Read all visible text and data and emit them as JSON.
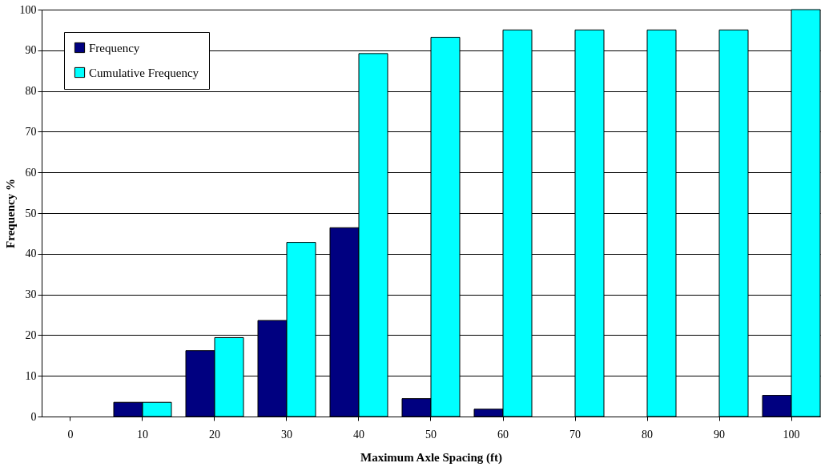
{
  "chart_data": {
    "type": "bar",
    "xlabel": "Maximum Axle Spacing (ft)",
    "ylabel": "Frequency %",
    "categories": [
      "0",
      "10",
      "20",
      "30",
      "40",
      "50",
      "60",
      "70",
      "80",
      "90",
      "100"
    ],
    "series": [
      {
        "name": "Frequency",
        "color": "#000080",
        "values": [
          0,
          3.5,
          16.2,
          23.6,
          46.4,
          4.4,
          1.8,
          0,
          0,
          0,
          5.2
        ]
      },
      {
        "name": "Cumulative Frequency",
        "color": "#00ffff",
        "values": [
          0,
          3.5,
          19.4,
          42.8,
          89.2,
          93.2,
          95,
          95,
          95,
          95,
          100
        ]
      }
    ],
    "ylim": [
      0,
      100
    ],
    "yticks": [
      0,
      10,
      20,
      30,
      40,
      50,
      60,
      70,
      80,
      90,
      100
    ],
    "grid": "y",
    "legend": "top left"
  }
}
